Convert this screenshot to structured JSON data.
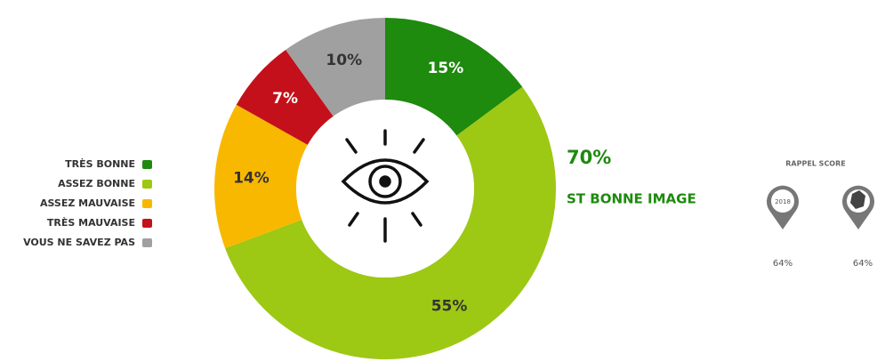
{
  "chart_data": {
    "type": "donut",
    "categories": [
      "TRÈS BONNE",
      "ASSEZ BONNE",
      "ASSEZ MAUVAISE",
      "TRÈS MAUVAISE",
      "VOUS NE SAVEZ PAS"
    ],
    "values": [
      15,
      55,
      14,
      7,
      10
    ],
    "value_labels": [
      "15%",
      "55%",
      "14%",
      "7%",
      "10%"
    ],
    "colors": [
      "#1e8a0e",
      "#9dc814",
      "#f9b800",
      "#c4101a",
      "#a0a0a0"
    ],
    "annotation": {
      "value": 70,
      "label": "70%",
      "text": "ST BONNE IMAGE"
    },
    "recall": {
      "title": "RAPPEL SCORE",
      "year": "2018",
      "scores": [
        {
          "value": 64,
          "label": "64%"
        },
        {
          "value": 64,
          "label": "64%"
        }
      ]
    }
  }
}
